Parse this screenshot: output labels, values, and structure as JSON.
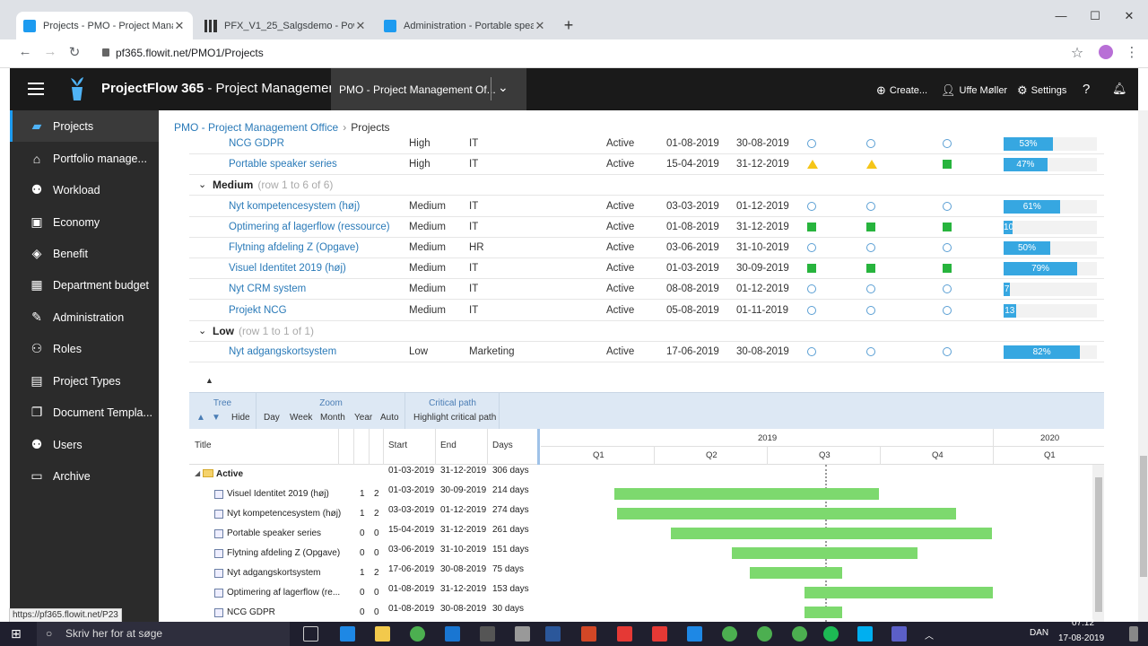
{
  "browser": {
    "tabs": [
      {
        "title": "Projects - PMO - Project Manage",
        "active": true
      },
      {
        "title": "PFX_V1_25_Salgsdemo - Power B",
        "active": false
      },
      {
        "title": "Administration - Portable speake",
        "active": false
      }
    ],
    "url": "pf365.flowit.net/PMO1/Projects",
    "status_url": "https://pf365.flowit.net/P23"
  },
  "app": {
    "brand": "ProjectFlow 365",
    "brand_suffix": " - Project Management",
    "workspace": "PMO - Project Management Of...",
    "create_label": "Create...",
    "user_name": "Uffe Møller",
    "settings_label": "Settings"
  },
  "sidebar": {
    "items": [
      {
        "label": "Projects",
        "icon": "briefcase-icon"
      },
      {
        "label": "Portfolio manage...",
        "icon": "home-icon"
      },
      {
        "label": "Workload",
        "icon": "people-icon"
      },
      {
        "label": "Economy",
        "icon": "money-icon"
      },
      {
        "label": "Benefit",
        "icon": "box-icon"
      },
      {
        "label": "Department budget",
        "icon": "table-icon"
      },
      {
        "label": "Administration",
        "icon": "wrench-icon"
      },
      {
        "label": "Roles",
        "icon": "roles-icon"
      },
      {
        "label": "Project Types",
        "icon": "project-types-icon"
      },
      {
        "label": "Document Templa...",
        "icon": "document-icon"
      },
      {
        "label": "Users",
        "icon": "users-icon"
      },
      {
        "label": "Archive",
        "icon": "archive-icon"
      }
    ]
  },
  "breadcrumb": {
    "parent": "PMO - Project Management Office",
    "current": "Projects"
  },
  "project_list": {
    "rows": [
      {
        "name": "NCG GDPR",
        "priority": "High",
        "dept": "IT",
        "status": "Active",
        "start": "01-08-2019",
        "end": "30-08-2019",
        "ind": [
          "info",
          "info",
          "info"
        ],
        "progress": 53,
        "label": "53%"
      },
      {
        "name": "Portable speaker series",
        "priority": "High",
        "dept": "IT",
        "status": "Active",
        "start": "15-04-2019",
        "end": "31-12-2019",
        "ind": [
          "warn",
          "warn",
          "ok"
        ],
        "progress": 47,
        "label": "47%"
      },
      {
        "group": "Medium",
        "summary": "(row 1 to 6 of 6)"
      },
      {
        "name": "Nyt kompetencesystem (høj)",
        "priority": "Medium",
        "dept": "IT",
        "status": "Active",
        "start": "03-03-2019",
        "end": "01-12-2019",
        "ind": [
          "info",
          "info",
          "info"
        ],
        "progress": 61,
        "label": "61%"
      },
      {
        "name": "Optimering af lagerflow (ressource)",
        "priority": "Medium",
        "dept": "IT",
        "status": "Active",
        "start": "01-08-2019",
        "end": "31-12-2019",
        "ind": [
          "ok",
          "ok",
          "ok"
        ],
        "progress": 10,
        "label": "10"
      },
      {
        "name": "Flytning afdeling Z (Opgave)",
        "priority": "Medium",
        "dept": "HR",
        "status": "Active",
        "start": "03-06-2019",
        "end": "31-10-2019",
        "ind": [
          "info",
          "info",
          "info"
        ],
        "progress": 50,
        "label": "50%"
      },
      {
        "name": "Visuel Identitet 2019 (høj)",
        "priority": "Medium",
        "dept": "IT",
        "status": "Active",
        "start": "01-03-2019",
        "end": "30-09-2019",
        "ind": [
          "ok",
          "ok",
          "ok"
        ],
        "progress": 79,
        "label": "79%"
      },
      {
        "name": "Nyt CRM system",
        "priority": "Medium",
        "dept": "IT",
        "status": "Active",
        "start": "08-08-2019",
        "end": "01-12-2019",
        "ind": [
          "info",
          "info",
          "info"
        ],
        "progress": 7,
        "label": "7"
      },
      {
        "name": "Projekt NCG",
        "priority": "Medium",
        "dept": "IT",
        "status": "Active",
        "start": "05-08-2019",
        "end": "01-11-2019",
        "ind": [
          "info",
          "info",
          "info"
        ],
        "progress": 13,
        "label": "13"
      },
      {
        "group": "Low",
        "summary": "(row 1 to 1 of 1)"
      },
      {
        "name": "Nyt adgangskortsystem",
        "priority": "Low",
        "dept": "Marketing",
        "status": "Active",
        "start": "17-06-2019",
        "end": "30-08-2019",
        "ind": [
          "info",
          "info",
          "info"
        ],
        "progress": 82,
        "label": "82%"
      }
    ]
  },
  "gantt": {
    "toolbar": {
      "tree": {
        "header": "Tree",
        "hide": "Hide"
      },
      "zoom": {
        "header": "Zoom",
        "options": [
          "Day",
          "Week",
          "Month",
          "Year",
          "Auto"
        ]
      },
      "critical": {
        "header": "Critical path",
        "button": "Highlight critical path"
      }
    },
    "columns": {
      "title": "Title",
      "start": "Start",
      "end": "End",
      "days": "Days"
    },
    "timeline": {
      "years": [
        "2019",
        "2020"
      ],
      "quarters": [
        "Q1",
        "Q2",
        "Q3",
        "Q4",
        "Q1"
      ]
    },
    "group": {
      "label": "Active",
      "start": "01-03-2019",
      "end": "31-12-2019",
      "days": "306 days"
    },
    "rows": [
      {
        "title": "Visuel Identitet 2019 (høj)",
        "n1": "1",
        "n2": "2",
        "start": "01-03-2019",
        "end": "30-09-2019",
        "days": "214 days",
        "bar": [
          82,
          295
        ]
      },
      {
        "title": "Nyt kompetencesystem (høj)",
        "n1": "1",
        "n2": "2",
        "start": "03-03-2019",
        "end": "01-12-2019",
        "days": "274 days",
        "bar": [
          85,
          378
        ]
      },
      {
        "title": "Portable speaker series",
        "n1": "0",
        "n2": "0",
        "start": "15-04-2019",
        "end": "31-12-2019",
        "days": "261 days",
        "bar": [
          145,
          358
        ]
      },
      {
        "title": "Flytning afdeling Z (Opgave)",
        "n1": "0",
        "n2": "0",
        "start": "03-06-2019",
        "end": "31-10-2019",
        "days": "151 days",
        "bar": [
          213,
          207
        ]
      },
      {
        "title": "Nyt adgangskortsystem",
        "n1": "1",
        "n2": "2",
        "start": "17-06-2019",
        "end": "30-08-2019",
        "days": "75 days",
        "bar": [
          233,
          103
        ]
      },
      {
        "title": "Optimering af lagerflow (re...",
        "n1": "0",
        "n2": "0",
        "start": "01-08-2019",
        "end": "31-12-2019",
        "days": "153 days",
        "bar": [
          294,
          210
        ]
      },
      {
        "title": "NCG GDPR",
        "n1": "0",
        "n2": "0",
        "start": "01-08-2019",
        "end": "30-08-2019",
        "days": "30 days",
        "bar": [
          294,
          42
        ]
      }
    ]
  },
  "taskbar": {
    "search_placeholder": "Skriv her for at søge",
    "lang": "DAN",
    "time": "07:12",
    "date": "17-08-2019"
  },
  "colors": {
    "accent": "#1d9bf0",
    "progress": "#36a7e1",
    "ok": "#27b43d",
    "warn": "#f5c518",
    "gantt_bar": "#7dd96e"
  }
}
